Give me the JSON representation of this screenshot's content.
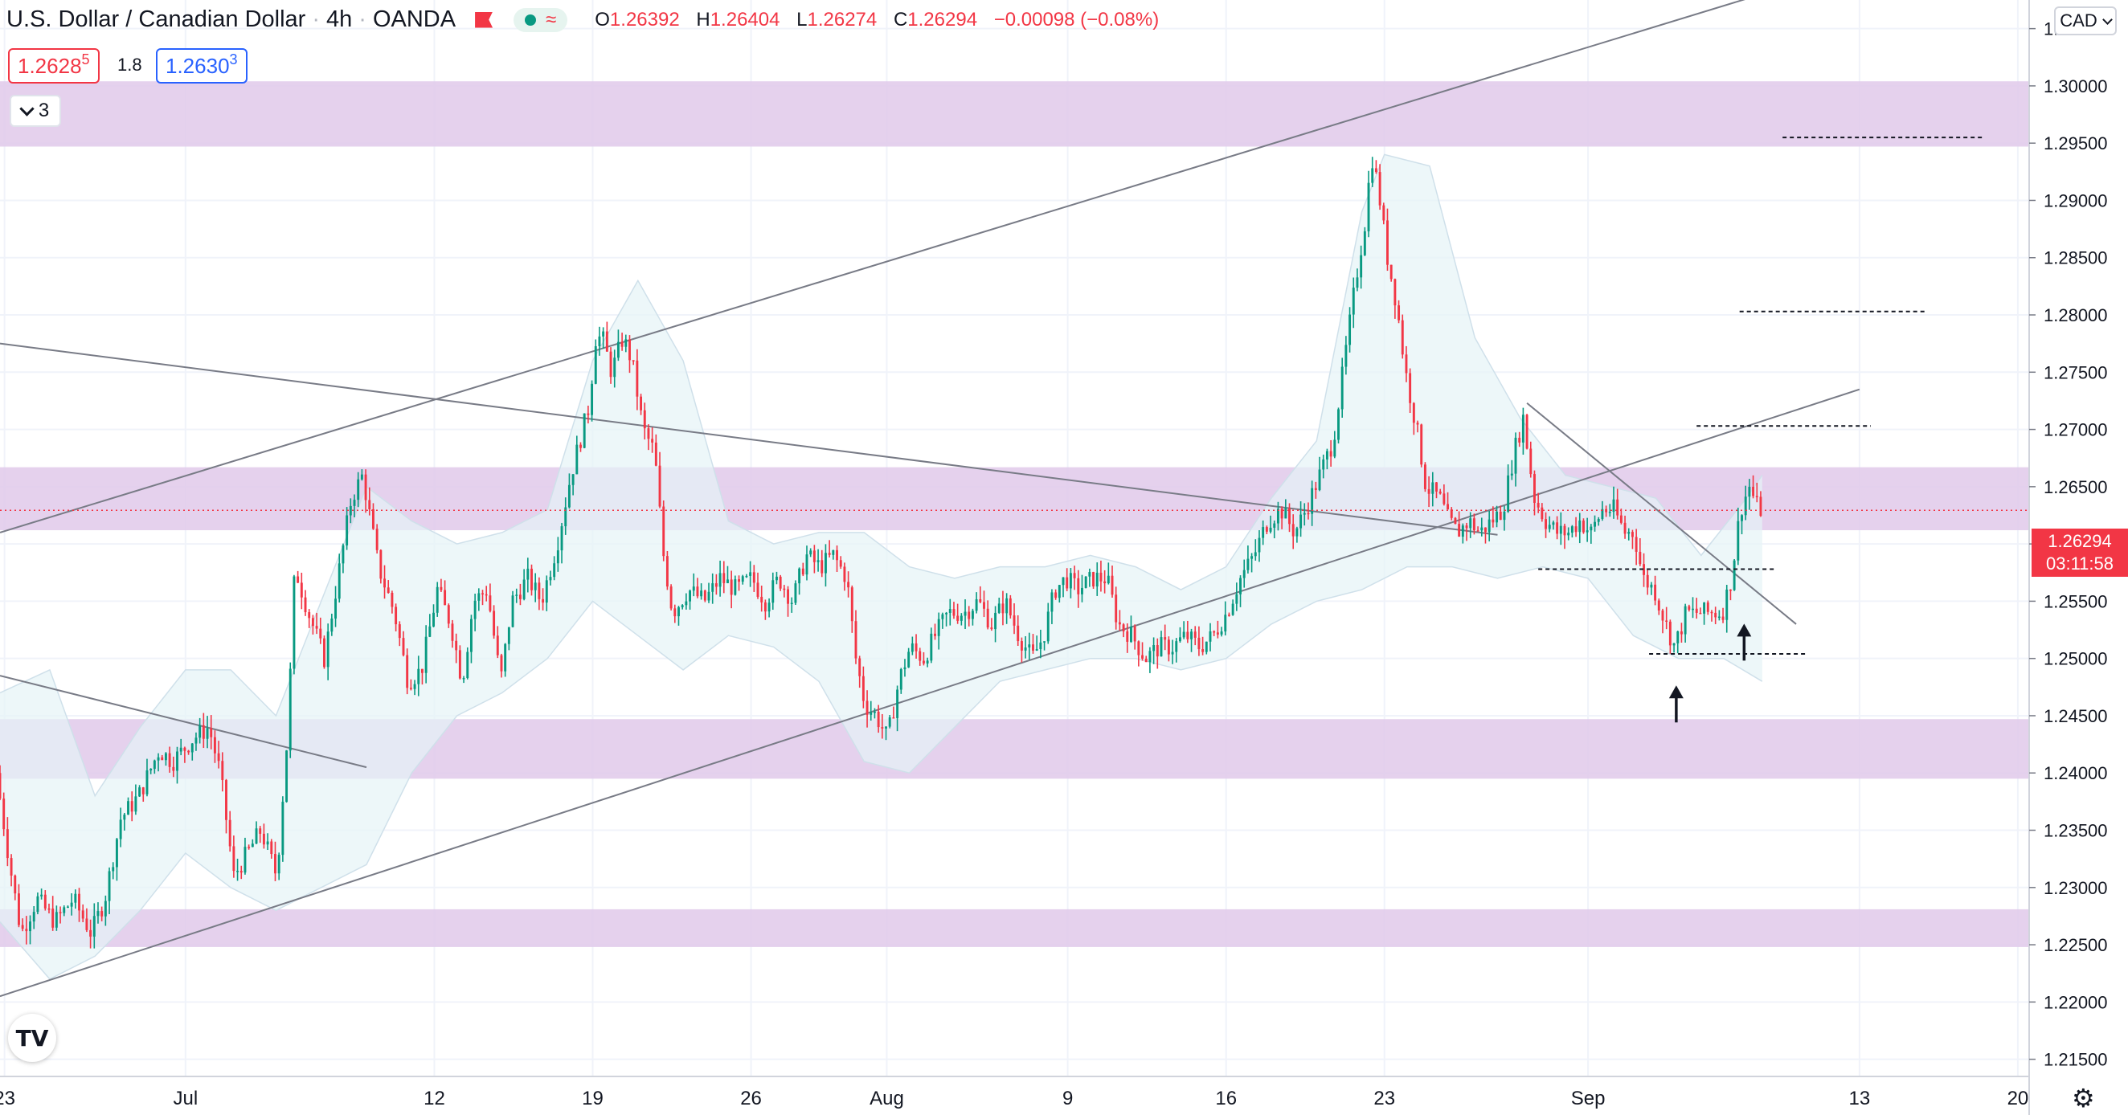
{
  "header": {
    "symbol": "U.S. Dollar / Canadian Dollar",
    "interval": "4h",
    "broker": "OANDA",
    "ohlc": {
      "o_label": "O",
      "o": "1.26392",
      "h_label": "H",
      "h": "1.26404",
      "l_label": "L",
      "l": "1.26274",
      "c_label": "C",
      "c": "1.26294",
      "change": "−0.00098 (−0.08%)"
    },
    "icons": [
      "flag-icon",
      "status-dot-icon",
      "wave-icon"
    ]
  },
  "quote": {
    "bid_main": "1.2628",
    "bid_sup": "5",
    "spread": "1.8",
    "ask_main": "1.2630",
    "ask_sup": "3"
  },
  "indicators_toggle": {
    "count": "3"
  },
  "currency_button": {
    "label": "CAD"
  },
  "last_price": {
    "value": "1.26294",
    "countdown": "03:11:58",
    "color": "#f23645"
  },
  "colors": {
    "up": "#089981",
    "down": "#f23645",
    "zone": "#e1c9ea",
    "band": "#e6f3f7"
  },
  "chart_data": {
    "type": "candlestick",
    "price_axis_ticks": [
      "1.30500",
      "1.30000",
      "1.29500",
      "1.29000",
      "1.28500",
      "1.28000",
      "1.27500",
      "1.27000",
      "1.26500",
      "1.26000",
      "1.25500",
      "1.25000",
      "1.24500",
      "1.24000",
      "1.23500",
      "1.23000",
      "1.22500",
      "1.22000",
      "1.21500"
    ],
    "time_axis_ticks": [
      {
        "label": "23",
        "day": -8
      },
      {
        "label": "Jul",
        "day": 0
      },
      {
        "label": "12",
        "day": 11
      },
      {
        "label": "19",
        "day": 18
      },
      {
        "label": "26",
        "day": 25
      },
      {
        "label": "Aug",
        "day": 31
      },
      {
        "label": "9",
        "day": 39
      },
      {
        "label": "16",
        "day": 46
      },
      {
        "label": "23",
        "day": 53
      },
      {
        "label": "Sep",
        "day": 62
      },
      {
        "label": "13",
        "day": 74
      },
      {
        "label": "20",
        "day": 81
      }
    ],
    "ylim": [
      1.2135,
      1.3075
    ],
    "xlim_days": [
      -8.2,
      81.5
    ],
    "path": [
      [
        -8.2,
        1.24
      ],
      [
        -7.6,
        1.232
      ],
      [
        -7.1,
        1.226
      ],
      [
        -6.4,
        1.229
      ],
      [
        -5.6,
        1.227
      ],
      [
        -4.8,
        1.229
      ],
      [
        -4.0,
        1.226
      ],
      [
        -3.4,
        1.229
      ],
      [
        -2.7,
        1.236
      ],
      [
        -1.9,
        1.238
      ],
      [
        -1.0,
        1.242
      ],
      [
        -0.4,
        1.241
      ],
      [
        0.5,
        1.243
      ],
      [
        1.2,
        1.244
      ],
      [
        1.7,
        1.24
      ],
      [
        2.3,
        1.231
      ],
      [
        2.9,
        1.233
      ],
      [
        3.5,
        1.235
      ],
      [
        4.2,
        1.231
      ],
      [
        4.7,
        1.244
      ],
      [
        5.0,
        1.258
      ],
      [
        5.6,
        1.254
      ],
      [
        6.3,
        1.25
      ],
      [
        6.9,
        1.257
      ],
      [
        7.5,
        1.264
      ],
      [
        8.0,
        1.266
      ],
      [
        8.7,
        1.258
      ],
      [
        9.4,
        1.254
      ],
      [
        10.0,
        1.248
      ],
      [
        10.6,
        1.249
      ],
      [
        11.3,
        1.256
      ],
      [
        11.9,
        1.253
      ],
      [
        12.4,
        1.248
      ],
      [
        12.9,
        1.255
      ],
      [
        13.5,
        1.256
      ],
      [
        14.1,
        1.248
      ],
      [
        14.6,
        1.255
      ],
      [
        15.3,
        1.257
      ],
      [
        15.9,
        1.255
      ],
      [
        16.6,
        1.26
      ],
      [
        17.2,
        1.266
      ],
      [
        17.6,
        1.269
      ],
      [
        18.0,
        1.272
      ],
      [
        18.3,
        1.278
      ],
      [
        18.6,
        1.278
      ],
      [
        19.0,
        1.275
      ],
      [
        19.5,
        1.278
      ],
      [
        19.9,
        1.276
      ],
      [
        20.4,
        1.27
      ],
      [
        20.9,
        1.268
      ],
      [
        21.3,
        1.259
      ],
      [
        21.7,
        1.254
      ],
      [
        22.4,
        1.256
      ],
      [
        23.1,
        1.255
      ],
      [
        23.8,
        1.257
      ],
      [
        24.5,
        1.256
      ],
      [
        25.2,
        1.257
      ],
      [
        25.8,
        1.255
      ],
      [
        26.4,
        1.257
      ],
      [
        27.0,
        1.255
      ],
      [
        27.6,
        1.259
      ],
      [
        28.2,
        1.258
      ],
      [
        28.8,
        1.259
      ],
      [
        29.4,
        1.257
      ],
      [
        29.8,
        1.25
      ],
      [
        30.2,
        1.246
      ],
      [
        30.7,
        1.245
      ],
      [
        31.2,
        1.243
      ],
      [
        31.7,
        1.248
      ],
      [
        32.2,
        1.251
      ],
      [
        32.8,
        1.25
      ],
      [
        33.3,
        1.252
      ],
      [
        33.9,
        1.254
      ],
      [
        34.6,
        1.254
      ],
      [
        35.2,
        1.255
      ],
      [
        35.8,
        1.253
      ],
      [
        36.4,
        1.255
      ],
      [
        37.0,
        1.252
      ],
      [
        37.6,
        1.25
      ],
      [
        38.1,
        1.252
      ],
      [
        38.6,
        1.256
      ],
      [
        39.1,
        1.257
      ],
      [
        39.6,
        1.256
      ],
      [
        40.3,
        1.257
      ],
      [
        40.9,
        1.257
      ],
      [
        41.4,
        1.253
      ],
      [
        42.0,
        1.252
      ],
      [
        42.6,
        1.25
      ],
      [
        43.2,
        1.251
      ],
      [
        43.8,
        1.251
      ],
      [
        44.4,
        1.252
      ],
      [
        45.0,
        1.251
      ],
      [
        45.6,
        1.252
      ],
      [
        46.2,
        1.254
      ],
      [
        46.8,
        1.257
      ],
      [
        47.4,
        1.259
      ],
      [
        48.0,
        1.262
      ],
      [
        48.6,
        1.263
      ],
      [
        49.2,
        1.261
      ],
      [
        49.7,
        1.263
      ],
      [
        50.3,
        1.266
      ],
      [
        50.9,
        1.269
      ],
      [
        51.4,
        1.276
      ],
      [
        51.9,
        1.283
      ],
      [
        52.3,
        1.288
      ],
      [
        52.6,
        1.294
      ],
      [
        52.9,
        1.291
      ],
      [
        53.3,
        1.285
      ],
      [
        53.7,
        1.281
      ],
      [
        54.1,
        1.275
      ],
      [
        54.6,
        1.27
      ],
      [
        55.0,
        1.265
      ],
      [
        55.6,
        1.264
      ],
      [
        56.0,
        1.262
      ],
      [
        56.4,
        1.261
      ],
      [
        56.9,
        1.262
      ],
      [
        57.4,
        1.261
      ],
      [
        57.9,
        1.262
      ],
      [
        58.4,
        1.263
      ],
      [
        58.9,
        1.268
      ],
      [
        59.3,
        1.271
      ],
      [
        59.8,
        1.264
      ],
      [
        60.3,
        1.262
      ],
      [
        60.8,
        1.261
      ],
      [
        61.3,
        1.261
      ],
      [
        61.8,
        1.262
      ],
      [
        62.3,
        1.261
      ],
      [
        62.8,
        1.263
      ],
      [
        63.3,
        1.263
      ],
      [
        63.8,
        1.261
      ],
      [
        64.2,
        1.261
      ],
      [
        64.6,
        1.257
      ],
      [
        65.1,
        1.256
      ],
      [
        65.6,
        1.253
      ],
      [
        66.0,
        1.251
      ],
      [
        66.5,
        1.254
      ],
      [
        67.0,
        1.254
      ],
      [
        67.6,
        1.254
      ],
      [
        68.1,
        1.254
      ],
      [
        68.5,
        1.257
      ],
      [
        68.9,
        1.263
      ],
      [
        69.3,
        1.265
      ],
      [
        69.7,
        1.263
      ]
    ],
    "bollinger": {
      "upper": [
        [
          -8.2,
          1.247
        ],
        [
          -6.0,
          1.249
        ],
        [
          -4.0,
          1.238
        ],
        [
          -2.0,
          1.244
        ],
        [
          0.0,
          1.249
        ],
        [
          2.0,
          1.249
        ],
        [
          4.0,
          1.245
        ],
        [
          6.0,
          1.255
        ],
        [
          8.0,
          1.265
        ],
        [
          10.0,
          1.262
        ],
        [
          12.0,
          1.26
        ],
        [
          14.0,
          1.261
        ],
        [
          16.0,
          1.263
        ],
        [
          18.0,
          1.276
        ],
        [
          20.0,
          1.283
        ],
        [
          22.0,
          1.276
        ],
        [
          24.0,
          1.262
        ],
        [
          26.0,
          1.26
        ],
        [
          28.0,
          1.261
        ],
        [
          30.0,
          1.261
        ],
        [
          32.0,
          1.258
        ],
        [
          34.0,
          1.257
        ],
        [
          36.0,
          1.258
        ],
        [
          38.0,
          1.258
        ],
        [
          40.0,
          1.259
        ],
        [
          42.0,
          1.258
        ],
        [
          44.0,
          1.256
        ],
        [
          46.0,
          1.258
        ],
        [
          48.0,
          1.264
        ],
        [
          50.0,
          1.269
        ],
        [
          52.0,
          1.289
        ],
        [
          53.0,
          1.294
        ],
        [
          55.0,
          1.293
        ],
        [
          57.0,
          1.278
        ],
        [
          59.0,
          1.271
        ],
        [
          61.0,
          1.266
        ],
        [
          63.0,
          1.265
        ],
        [
          65.0,
          1.264
        ],
        [
          67.0,
          1.259
        ],
        [
          69.0,
          1.264
        ],
        [
          69.7,
          1.266
        ]
      ],
      "lower": [
        [
          -8.2,
          1.227
        ],
        [
          -6.0,
          1.222
        ],
        [
          -4.0,
          1.224
        ],
        [
          -2.0,
          1.228
        ],
        [
          0.0,
          1.233
        ],
        [
          2.0,
          1.23
        ],
        [
          4.0,
          1.228
        ],
        [
          6.0,
          1.23
        ],
        [
          8.0,
          1.232
        ],
        [
          10.0,
          1.24
        ],
        [
          12.0,
          1.245
        ],
        [
          14.0,
          1.247
        ],
        [
          16.0,
          1.25
        ],
        [
          18.0,
          1.255
        ],
        [
          20.0,
          1.252
        ],
        [
          22.0,
          1.249
        ],
        [
          24.0,
          1.252
        ],
        [
          26.0,
          1.251
        ],
        [
          28.0,
          1.248
        ],
        [
          30.0,
          1.241
        ],
        [
          32.0,
          1.24
        ],
        [
          34.0,
          1.244
        ],
        [
          36.0,
          1.248
        ],
        [
          38.0,
          1.249
        ],
        [
          40.0,
          1.25
        ],
        [
          42.0,
          1.25
        ],
        [
          44.0,
          1.249
        ],
        [
          46.0,
          1.25
        ],
        [
          48.0,
          1.253
        ],
        [
          50.0,
          1.255
        ],
        [
          52.0,
          1.256
        ],
        [
          54.0,
          1.258
        ],
        [
          56.0,
          1.258
        ],
        [
          58.0,
          1.257
        ],
        [
          60.0,
          1.258
        ],
        [
          62.0,
          1.257
        ],
        [
          64.0,
          1.252
        ],
        [
          66.0,
          1.25
        ],
        [
          68.0,
          1.25
        ],
        [
          69.7,
          1.248
        ]
      ]
    },
    "zones": [
      {
        "from": 1.2947,
        "to": 1.3004
      },
      {
        "from": 1.2612,
        "to": 1.2667
      },
      {
        "from": 1.2395,
        "to": 1.2447
      },
      {
        "from": 1.2248,
        "to": 1.2281
      }
    ],
    "trendlines": [
      {
        "from": [
          -8.2,
          1.261
        ],
        "to": [
          73.8,
          1.3105
        ]
      },
      {
        "from": [
          -8.2,
          1.2205
        ],
        "to": [
          74.0,
          1.2735
        ]
      },
      {
        "from": [
          -8.2,
          1.2775
        ],
        "to": [
          58.0,
          1.2608
        ]
      },
      {
        "from": [
          -8.2,
          1.2485
        ],
        "to": [
          8.0,
          1.2405
        ]
      },
      {
        "from": [
          59.3,
          1.2723
        ],
        "to": [
          71.2,
          1.253
        ]
      }
    ],
    "dashed_levels": [
      {
        "price": 1.2955,
        "from": 70.6,
        "to": 79.5
      },
      {
        "price": 1.2803,
        "from": 68.7,
        "to": 77.0
      },
      {
        "price": 1.2703,
        "from": 66.8,
        "to": 74.5
      },
      {
        "price": 1.2578,
        "from": 59.8,
        "to": 70.3
      },
      {
        "price": 1.2504,
        "from": 64.7,
        "to": 71.7
      }
    ],
    "arrows": [
      {
        "day": 65.9,
        "price": 1.2468
      },
      {
        "day": 68.9,
        "price": 1.2522
      }
    ],
    "last_price_line": 1.26294
  }
}
